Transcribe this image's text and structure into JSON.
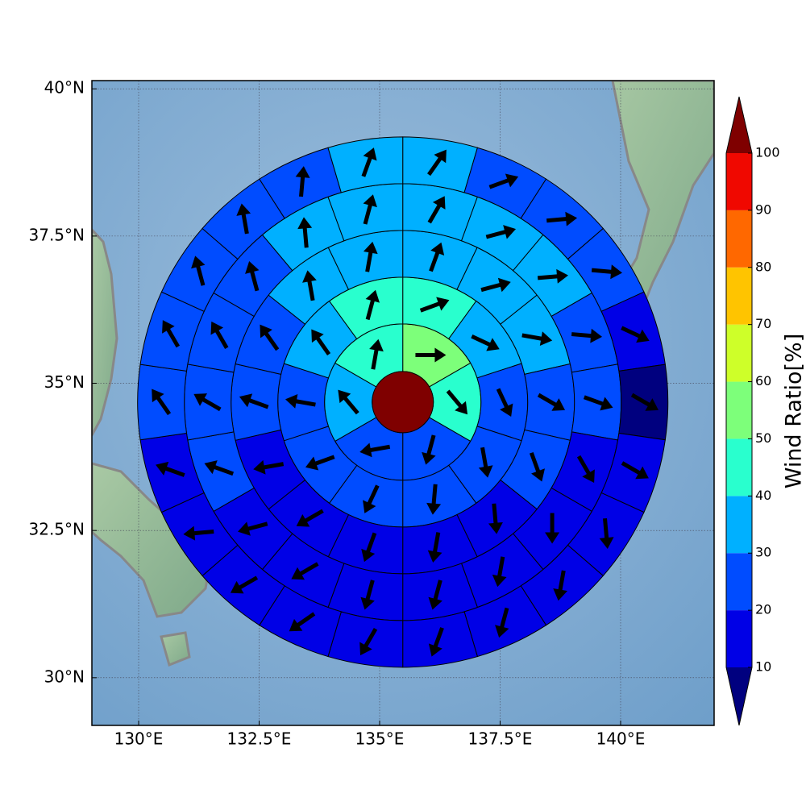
{
  "chart_data": {
    "type": "polar_sector_map",
    "colorbar_label": "Wind Ratio[%]",
    "xlim": [
      129.03,
      141.94
    ],
    "ylim": [
      29.19,
      40.14
    ],
    "xticks": [
      {
        "value": 130,
        "label": "130°E"
      },
      {
        "value": 132.5,
        "label": "132.5°E"
      },
      {
        "value": 135,
        "label": "135°E"
      },
      {
        "value": 137.5,
        "label": "137.5°E"
      },
      {
        "value": 140,
        "label": "140°E"
      }
    ],
    "yticks": [
      {
        "value": 30,
        "label": "30°N"
      },
      {
        "value": 32.5,
        "label": "32.5°N"
      },
      {
        "value": 35,
        "label": "35°N"
      },
      {
        "value": 37.5,
        "label": "37.5°N"
      },
      {
        "value": 40,
        "label": "40°N"
      }
    ],
    "grid": true,
    "center": [
      135.48,
      34.68
    ],
    "center_value": 105,
    "levels": [
      10,
      20,
      30,
      40,
      50,
      60,
      70,
      80,
      90,
      100
    ],
    "colors": [
      "#00007f",
      "#0000e6",
      "#004cff",
      "#00b0ff",
      "#29ffce",
      "#7dff7a",
      "#ceff29",
      "#ffc400",
      "#ff6800",
      "#f00800",
      "#7f0000"
    ],
    "rings": [
      {
        "values": [
          55,
          45,
          25,
          25,
          35,
          45
        ],
        "directions": [
          90,
          140,
          195,
          260,
          320,
          10
        ]
      },
      {
        "values": [
          45,
          35,
          25,
          25,
          25,
          25,
          25,
          25,
          35,
          45
        ],
        "directions": [
          70,
          115,
          155,
          170,
          185,
          205,
          250,
          280,
          325,
          15
        ]
      },
      {
        "values": [
          35,
          35,
          35,
          25,
          25,
          15,
          15,
          15,
          15,
          15,
          25,
          25,
          35,
          35
        ],
        "directions": [
          20,
          75,
          100,
          120,
          160,
          175,
          190,
          200,
          240,
          260,
          290,
          325,
          350,
          10
        ]
      },
      {
        "values": [
          35,
          35,
          35,
          25,
          25,
          15,
          15,
          15,
          15,
          15,
          15,
          15,
          25,
          25,
          25,
          25,
          35,
          35
        ],
        "directions": [
          30,
          75,
          85,
          95,
          110,
          150,
          180,
          190,
          195,
          195,
          240,
          255,
          290,
          300,
          330,
          345,
          355,
          15
        ]
      },
      {
        "values": [
          35,
          25,
          25,
          25,
          15,
          5,
          15,
          15,
          15,
          15,
          15,
          15,
          15,
          15,
          15,
          15,
          25,
          25,
          25,
          25,
          25,
          35
        ],
        "directions": [
          35,
          70,
          85,
          95,
          115,
          120,
          120,
          175,
          190,
          195,
          200,
          210,
          235,
          240,
          265,
          290,
          325,
          330,
          345,
          350,
          5,
          20
        ]
      }
    ]
  }
}
